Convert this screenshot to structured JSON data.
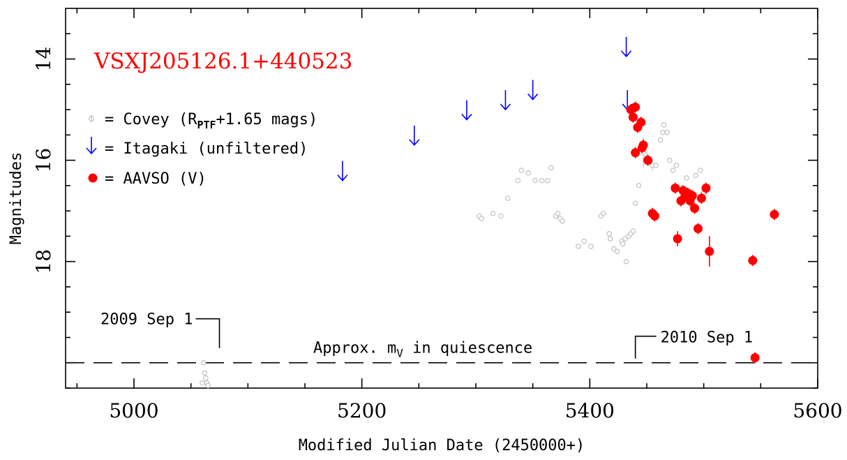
{
  "chart_data": {
    "type": "scatter",
    "title": "VSXJ205126.1+440523",
    "xlabel": "Modified Julian Date (2450000+)",
    "ylabel": "Magnitudes",
    "xlim": [
      4940,
      5600
    ],
    "ylim": [
      20.5,
      13.0
    ],
    "y_inverted": true,
    "grid": false,
    "legend_position": "top-left",
    "x_ticks": [
      5000,
      5200,
      5400,
      5600
    ],
    "y_ticks": [
      14,
      16,
      18
    ],
    "colors": {
      "covey": "#c0c0c0",
      "itagaki": "#0000ff",
      "aavso": "#ff0000",
      "title": "#ff0000",
      "axes": "#000000"
    },
    "legend": {
      "covey": {
        "prefix": "= Covey (R",
        "sub": "PTF",
        "suffix": "+1.65 mags)"
      },
      "itagaki": "= Itagaki (unfiltered)",
      "aavso": "= AAVSO (V)"
    },
    "annotations": {
      "date_2009": "2009 Sep 1",
      "date_2010": "2010 Sep 1",
      "quiescence": {
        "prefix": "Approx. m",
        "sub": "V",
        "suffix": " in quiescence"
      },
      "quiescence_mag": 20.0,
      "date_2009_mjd": 5075,
      "date_2010_mjd": 5440
    },
    "series": [
      {
        "name": "Covey",
        "marker": "small-open-circle",
        "x": [
          5060,
          5061,
          5062,
          5063,
          5064,
          5065,
          5303,
          5305,
          5315,
          5322,
          5328,
          5337,
          5340,
          5346,
          5352,
          5358,
          5363,
          5366,
          5370,
          5372,
          5374,
          5376,
          5390,
          5395,
          5401,
          5410,
          5412,
          5417,
          5418,
          5421,
          5424,
          5428,
          5429,
          5431,
          5432,
          5434,
          5436,
          5438,
          5440,
          5443,
          5447,
          5450,
          5455,
          5458,
          5462,
          5464,
          5465,
          5468,
          5470,
          5473,
          5476,
          5480,
          5485,
          5487,
          5488,
          5490,
          5493,
          5497,
          5500
        ],
        "y": [
          20.4,
          20.0,
          20.2,
          20.3,
          20.4,
          20.45,
          17.1,
          17.15,
          17.05,
          17.1,
          16.75,
          16.4,
          16.2,
          16.25,
          16.4,
          16.4,
          16.4,
          16.15,
          17.1,
          17.05,
          17.15,
          17.2,
          17.7,
          17.6,
          17.7,
          17.1,
          17.05,
          17.45,
          17.55,
          17.75,
          17.8,
          17.6,
          17.65,
          17.55,
          18.0,
          17.5,
          17.45,
          17.4,
          16.85,
          16.5,
          15.85,
          15.95,
          16.1,
          16.1,
          15.6,
          15.45,
          15.3,
          15.45,
          16.0,
          16.2,
          16.1,
          16.55,
          16.35,
          16.65,
          16.7,
          16.7,
          16.3,
          16.2,
          16.65
        ],
        "y_err": [
          0.05,
          0.05,
          0.05,
          0.05,
          0.05,
          0.05,
          0.05,
          0.05,
          0.05,
          0.05,
          0.05,
          0.05,
          0.05,
          0.05,
          0.05,
          0.05,
          0.05,
          0.05,
          0.05,
          0.05,
          0.05,
          0.05,
          0.05,
          0.05,
          0.05,
          0.05,
          0.05,
          0.05,
          0.05,
          0.05,
          0.05,
          0.05,
          0.05,
          0.05,
          0.05,
          0.05,
          0.05,
          0.05,
          0.05,
          0.05,
          0.3,
          0.15,
          0.1,
          0.05,
          0.05,
          0.05,
          0.05,
          0.05,
          0.05,
          0.05,
          0.05,
          0.05,
          0.05,
          0.05,
          0.05,
          0.05,
          0.05,
          0.05,
          0.05
        ]
      },
      {
        "name": "Itagaki",
        "marker": "upper-limit-arrow",
        "x": [
          5183,
          5246,
          5292,
          5326,
          5350,
          5432,
          5433
        ],
        "y": [
          16.4,
          15.7,
          15.2,
          15.0,
          14.8,
          13.95,
          15.0
        ]
      },
      {
        "name": "AAVSO",
        "marker": "filled-circle",
        "x": [
          5436,
          5438,
          5440,
          5442,
          5445,
          5447,
          5440,
          5446,
          5451,
          5455,
          5457,
          5475,
          5477,
          5480,
          5482,
          5484,
          5486,
          5488,
          5490,
          5492,
          5495,
          5498,
          5502,
          5505,
          5543,
          5545,
          5562
        ],
        "y": [
          15.0,
          15.15,
          14.95,
          15.35,
          15.25,
          15.7,
          15.85,
          15.75,
          16.0,
          17.05,
          17.1,
          16.55,
          17.55,
          16.8,
          16.6,
          16.7,
          16.65,
          16.8,
          16.7,
          16.95,
          17.35,
          16.75,
          16.55,
          17.8,
          17.98,
          19.9,
          17.07
        ],
        "y_err": [
          0.05,
          0.05,
          0.05,
          0.05,
          0.05,
          0.05,
          0.05,
          0.05,
          0.05,
          0.1,
          0.1,
          0.05,
          0.15,
          0.1,
          0.1,
          0.1,
          0.1,
          0.1,
          0.05,
          0.05,
          0.05,
          0.05,
          0.05,
          0.3,
          0.05,
          0.05,
          0.05
        ]
      }
    ]
  }
}
